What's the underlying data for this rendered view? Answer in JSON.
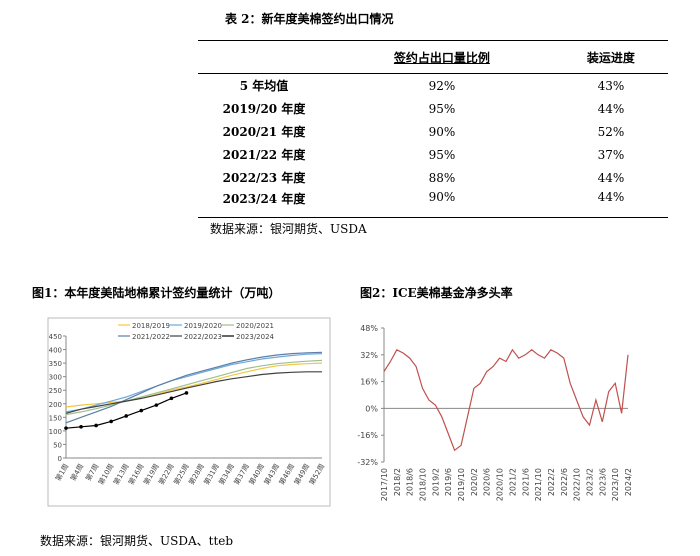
{
  "table": {
    "title": "表 2：新年度美棉签约出口情况",
    "header": [
      "签约占出口量比例",
      "装运进度"
    ],
    "rows": [
      [
        "5 年均值",
        "92%",
        "43%"
      ],
      [
        "2019/20 年度",
        "95%",
        "44%"
      ],
      [
        "2020/21 年度",
        "90%",
        "52%"
      ],
      [
        "2021/22 年度",
        "95%",
        "37%"
      ],
      [
        "2022/23 年度",
        "88%",
        "44%"
      ],
      [
        "2023/24 年度",
        "90%",
        "44%"
      ]
    ],
    "source": "数据来源：银河期货、USDA"
  },
  "chart_data": [
    {
      "type": "line",
      "title": "图1：本年度美陆地棉累计签约量统计（万吨）",
      "categories": [
        "第1周",
        "第4周",
        "第7周",
        "第10周",
        "第13周",
        "第16周",
        "第19周",
        "第22周",
        "第25周",
        "第28周",
        "第31周",
        "第34周",
        "第37周",
        "第40周",
        "第43周",
        "第46周",
        "第49周",
        "第52周"
      ],
      "series": [
        {
          "name": "2018/2019",
          "color": "#f2c744",
          "values": [
            188,
            195,
            200,
            205,
            210,
            220,
            235,
            250,
            262,
            275,
            290,
            305,
            318,
            330,
            340,
            345,
            348,
            350
          ]
        },
        {
          "name": "2019/2020",
          "color": "#6fa8dc",
          "values": [
            170,
            180,
            195,
            210,
            225,
            245,
            265,
            285,
            300,
            315,
            330,
            345,
            355,
            365,
            372,
            378,
            383,
            385
          ]
        },
        {
          "name": "2020/2021",
          "color": "#9fbf8f",
          "values": [
            160,
            170,
            182,
            195,
            210,
            225,
            240,
            255,
            270,
            285,
            300,
            315,
            330,
            340,
            348,
            353,
            357,
            360
          ]
        },
        {
          "name": "2021/2022",
          "color": "#5b7fa6",
          "values": [
            130,
            150,
            170,
            190,
            215,
            240,
            265,
            285,
            305,
            320,
            335,
            350,
            362,
            372,
            380,
            385,
            388,
            390
          ]
        },
        {
          "name": "2022/2023",
          "color": "#404040",
          "values": [
            165,
            180,
            190,
            200,
            210,
            220,
            232,
            245,
            258,
            270,
            282,
            292,
            300,
            308,
            313,
            316,
            318,
            318
          ]
        },
        {
          "name": "2023/2024",
          "color": "#000000",
          "marker": "circle",
          "values": [
            110,
            115,
            120,
            135,
            155,
            175,
            195,
            220,
            240,
            null,
            null,
            null,
            null,
            null,
            null,
            null,
            null,
            null
          ]
        }
      ],
      "ylim": [
        0,
        450
      ],
      "yticks": [
        0,
        50,
        100,
        150,
        200,
        250,
        300,
        350,
        400,
        450
      ]
    },
    {
      "type": "line",
      "title": "图2：ICE美棉基金净多头率",
      "categories": [
        "2017/10",
        null,
        "2018/2",
        null,
        "2018/6",
        null,
        "2018/10",
        null,
        "2019/2",
        null,
        "2019/6",
        null,
        "2019/10",
        null,
        "2020/2",
        null,
        "2020/6",
        null,
        "2020/10",
        null,
        "2021/2",
        null,
        "2021/6",
        null,
        "2021/10",
        null,
        "2022/2",
        null,
        "2022/6",
        null,
        "2022/10",
        null,
        "2023/2",
        null,
        "2023/6",
        null,
        "2023/10",
        null,
        "2024/2"
      ],
      "series": [
        {
          "name": null,
          "color": "#c0504d",
          "values": [
            22,
            28,
            35,
            33,
            30,
            25,
            12,
            5,
            2,
            -5,
            -15,
            -25,
            -22,
            -5,
            12,
            15,
            22,
            25,
            30,
            28,
            35,
            30,
            32,
            35,
            32,
            30,
            35,
            33,
            30,
            15,
            5,
            -5,
            -10,
            5,
            -8,
            10,
            15,
            -3,
            32
          ]
        }
      ],
      "ylim": [
        -32,
        48
      ],
      "yticks": [
        {
          "value": -32,
          "label": "-32%"
        },
        {
          "value": -16,
          "label": "-16%"
        },
        {
          "value": 0,
          "label": "0%"
        },
        {
          "value": 16,
          "label": "16%"
        },
        {
          "value": 32,
          "label": "32%"
        },
        {
          "value": 48,
          "label": "48%"
        }
      ]
    }
  ],
  "footer": "数据来源：银河期货、USDA、tteb"
}
